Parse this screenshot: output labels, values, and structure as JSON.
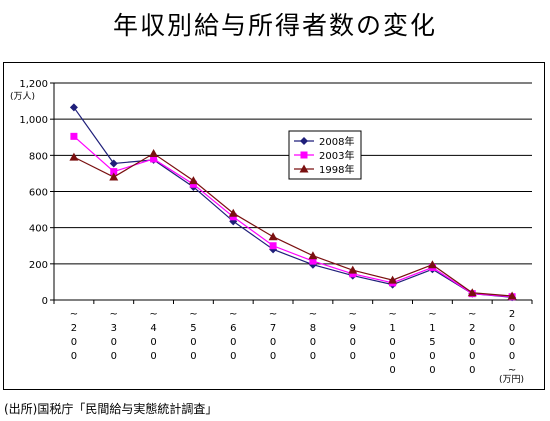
{
  "title": "年収別給与所得者数の変化",
  "source": "(出所)国税庁「民間給与実態統計調査」",
  "chart_data": {
    "type": "line",
    "title": "年収別給与所得者数の変化",
    "ylabel": "(万人)",
    "xlabel": "(万円)",
    "ylim": [
      0,
      1200
    ],
    "ytick_labels": [
      "0",
      "200",
      "400",
      "600",
      "800",
      "1,000",
      "1,200"
    ],
    "yticks": [
      0,
      200,
      400,
      600,
      800,
      1000,
      1200
    ],
    "grid": true,
    "legend_position": "center",
    "categories": [
      [
        "~",
        "2",
        "0",
        "0"
      ],
      [
        "~",
        "3",
        "0",
        "0"
      ],
      [
        "~",
        "4",
        "0",
        "0"
      ],
      [
        "~",
        "5",
        "0",
        "0"
      ],
      [
        "~",
        "6",
        "0",
        "0"
      ],
      [
        "~",
        "7",
        "0",
        "0"
      ],
      [
        "~",
        "8",
        "0",
        "0"
      ],
      [
        "~",
        "9",
        "0",
        "0"
      ],
      [
        "~",
        "1",
        "0",
        "0",
        "0"
      ],
      [
        "~",
        "1",
        "5",
        "0",
        "0"
      ],
      [
        "~",
        "2",
        "0",
        "0",
        "0"
      ],
      [
        "2",
        "0",
        "0",
        "0",
        "~"
      ]
    ],
    "series": [
      {
        "name": "2008年",
        "color": "#1f1f7a",
        "marker": "diamond",
        "values": [
          1065,
          755,
          775,
          625,
          435,
          280,
          195,
          135,
          85,
          170,
          35,
          15
        ]
      },
      {
        "name": "2003年",
        "color": "#ff00ff",
        "marker": "square",
        "values": [
          905,
          710,
          780,
          640,
          460,
          300,
          215,
          145,
          95,
          180,
          35,
          18
        ]
      },
      {
        "name": "1998年",
        "color": "#7a1010",
        "marker": "triangle",
        "values": [
          790,
          680,
          810,
          660,
          480,
          350,
          245,
          165,
          110,
          195,
          40,
          22
        ]
      }
    ]
  }
}
